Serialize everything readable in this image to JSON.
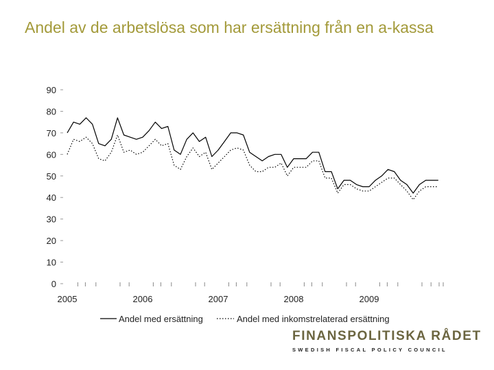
{
  "title": "Andel av de arbetslösa som har ersättning från en a-kassa",
  "logo": {
    "name": "FINANSPOLITISKA RÅDET",
    "subtitle": "SWEDISH FISCAL POLICY COUNCIL"
  },
  "colors": {
    "title": "#a39a3a",
    "series": "#000000",
    "logo": "#6b6540"
  },
  "chart_data": {
    "type": "line",
    "title": "",
    "xlabel": "",
    "ylabel": "",
    "ylim": [
      0,
      90
    ],
    "y_ticks": [
      0,
      10,
      20,
      30,
      40,
      50,
      60,
      70,
      80,
      90
    ],
    "x_tick_labels": [
      "2005",
      "2006",
      "2007",
      "2008",
      "2009"
    ],
    "x_range_months": 60,
    "grid": false,
    "legend_position": "bottom",
    "series": [
      {
        "name": "Andel med ersättning",
        "style": "solid",
        "values": [
          70,
          75,
          74,
          77,
          74,
          65,
          64,
          67,
          77,
          69,
          68,
          67,
          68,
          71,
          75,
          72,
          73,
          62,
          60,
          67,
          70,
          66,
          68,
          59,
          62,
          66,
          70,
          70,
          69,
          61,
          59,
          57,
          59,
          60,
          60,
          54,
          58,
          58,
          58,
          61,
          61,
          52,
          52,
          44,
          48,
          48,
          46,
          45,
          45,
          48,
          50,
          53,
          52,
          48,
          46,
          42,
          46,
          48,
          48,
          48
        ],
        "start_month": 0
      },
      {
        "name": "Andel med inkomstrelaterad ersättning",
        "style": "dotted",
        "values": [
          60,
          67,
          66,
          68,
          65,
          58,
          57,
          61,
          69,
          61,
          62,
          60,
          61,
          64,
          67,
          64,
          65,
          55,
          53,
          59,
          63,
          59,
          61,
          53,
          56,
          59,
          62,
          63,
          62,
          55,
          52,
          52,
          54,
          54,
          56,
          50,
          54,
          54,
          54,
          57,
          57,
          49,
          49,
          42,
          46,
          46,
          44,
          43,
          43,
          45,
          47,
          49,
          49,
          46,
          43,
          39,
          43,
          45,
          45,
          45
        ],
        "start_month": 0
      }
    ]
  }
}
